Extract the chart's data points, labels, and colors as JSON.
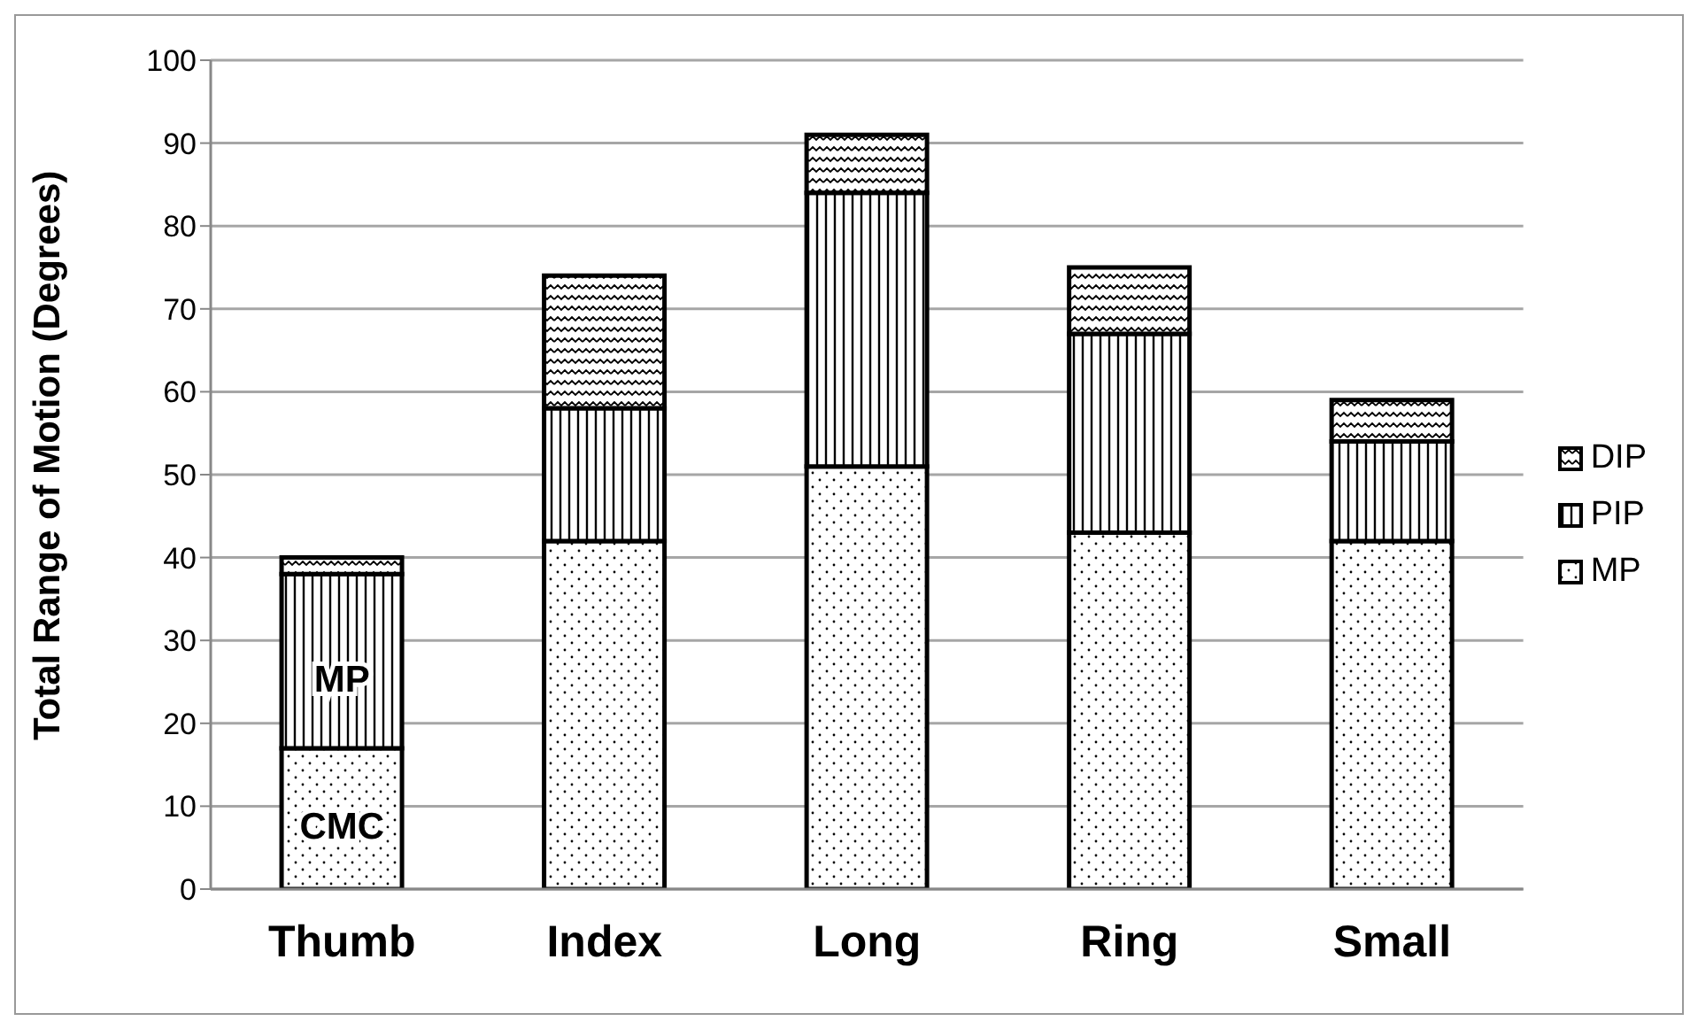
{
  "chart_data": {
    "type": "bar",
    "stacked": true,
    "ylabel": "Total Range of Motion (Degrees)",
    "categories": [
      "Thumb",
      "Index",
      "Long",
      "Ring",
      "Small"
    ],
    "series": [
      {
        "name": "MP",
        "color": "#000000",
        "values": [
          17,
          42,
          51,
          43,
          42
        ]
      },
      {
        "name": "PIP",
        "color": "#000000",
        "values": [
          21,
          16,
          33,
          24,
          12
        ]
      },
      {
        "name": "DIP",
        "color": "#000000",
        "values": [
          2,
          16,
          7,
          8,
          5
        ]
      }
    ],
    "ylim": [
      0,
      100
    ],
    "yticks": [
      0,
      10,
      20,
      30,
      40,
      50,
      60,
      70,
      80,
      90,
      100
    ],
    "grid": "y",
    "legend": "right",
    "annotations": [
      "CMC",
      "MP"
    ]
  }
}
